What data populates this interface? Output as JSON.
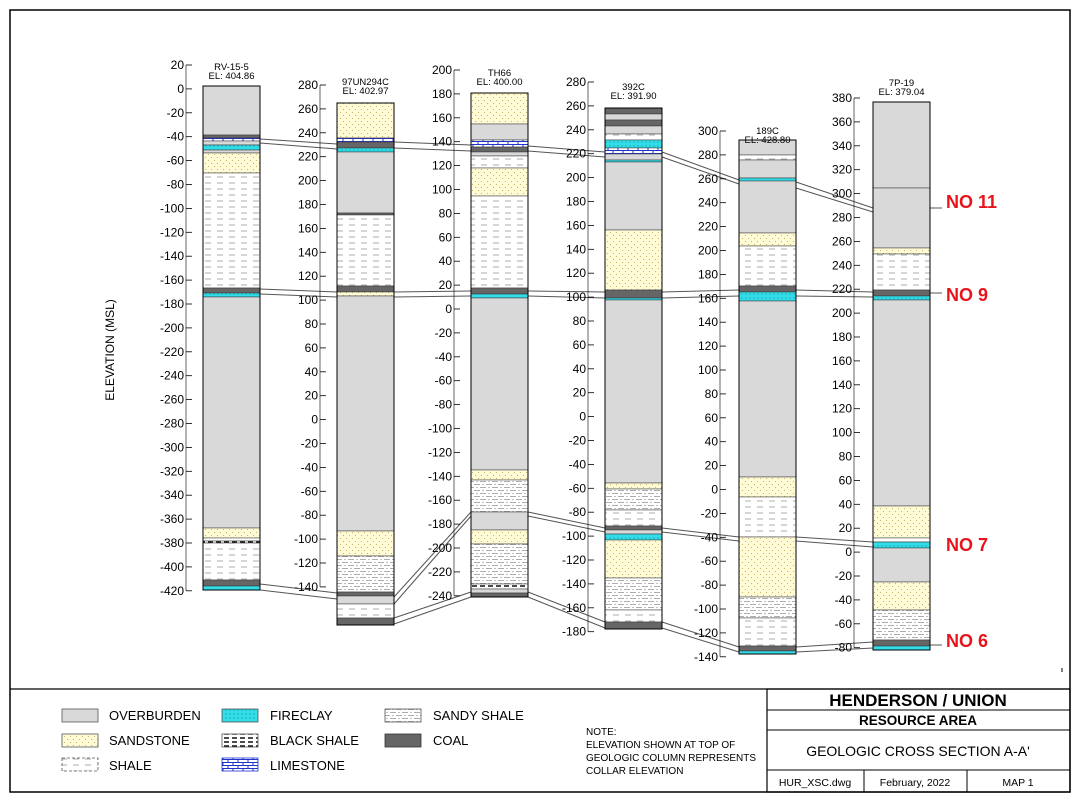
{
  "axis_label": "ELEVATION (MSL)",
  "columns": [
    {
      "id": "RV-15-5",
      "name": "RV-15-5",
      "el_label": "EL: 404.86",
      "ticks": [
        "20",
        "0",
        "-20",
        "-40",
        "-60",
        "-80",
        "-100",
        "-120",
        "-140",
        "-160",
        "-180",
        "-200",
        "-220",
        "-240",
        "-260",
        "-280",
        "-300",
        "-320",
        "-340",
        "-360",
        "-380",
        "-400",
        "-420"
      ]
    },
    {
      "id": "97UN294C",
      "name": "97UN294C",
      "el_label": "EL: 402.97",
      "ticks": [
        "280",
        "260",
        "240",
        "220",
        "200",
        "180",
        "160",
        "140",
        "120",
        "100",
        "80",
        "60",
        "40",
        "20",
        "0",
        "-20",
        "-40",
        "-60",
        "-80",
        "-100",
        "-120",
        "-140"
      ]
    },
    {
      "id": "TH66",
      "name": "TH66",
      "el_label": "EL: 400.00",
      "ticks": [
        "200",
        "180",
        "160",
        "140",
        "120",
        "100",
        "80",
        "60",
        "40",
        "20",
        "0",
        "-20",
        "-40",
        "-60",
        "-80",
        "-100",
        "-120",
        "-140",
        "-160",
        "-180",
        "-200",
        "-220",
        "-240"
      ]
    },
    {
      "id": "392C",
      "name": "392C",
      "el_label": "EL: 391.90",
      "ticks": [
        "280",
        "260",
        "240",
        "220",
        "200",
        "180",
        "160",
        "140",
        "120",
        "100",
        "80",
        "60",
        "40",
        "20",
        "0",
        "-20",
        "-40",
        "-60",
        "-80",
        "-100",
        "-120",
        "-140",
        "-160",
        "-180"
      ]
    },
    {
      "id": "189C",
      "name": "189C",
      "el_label": "EL: 428.80",
      "ticks": [
        "300",
        "280",
        "260",
        "240",
        "220",
        "200",
        "180",
        "160",
        "140",
        "120",
        "100",
        "80",
        "60",
        "40",
        "20",
        "0",
        "-20",
        "-40",
        "-60",
        "-80",
        "-100",
        "-120",
        "-140"
      ]
    },
    {
      "id": "7P-19",
      "name": "7P-19",
      "el_label": "EL: 379.04",
      "ticks": [
        "380",
        "360",
        "340",
        "320",
        "300",
        "280",
        "260",
        "240",
        "220",
        "200",
        "180",
        "160",
        "140",
        "120",
        "100",
        "80",
        "60",
        "40",
        "20",
        "0",
        "-20",
        "-40",
        "-60",
        "-80"
      ]
    }
  ],
  "seams": [
    "NO 11",
    "NO 9",
    "NO 7",
    "NO 6"
  ],
  "legend": [
    "OVERBURDEN",
    "SANDSTONE",
    "SHALE",
    "FIRECLAY",
    "BLACK SHALE",
    "LIMESTONE",
    "SANDY SHALE",
    "COAL"
  ],
  "note": {
    "lines": [
      "NOTE:",
      "ELEVATION SHOWN AT TOP OF",
      "GEOLOGIC COLUMN REPRESENTS",
      "COLLAR ELEVATION"
    ]
  },
  "title_block": {
    "title": "HENDERSON / UNION",
    "subtitle": "RESOURCE AREA",
    "section": "GEOLOGIC CROSS SECTION A-A'",
    "file": "HUR_XSC.dwg",
    "date": "February, 2022",
    "map": "MAP 1"
  },
  "colors": {
    "overburden": "#d9d9d9",
    "sandstone": "#fffbd6",
    "fireclay": "#33dde8",
    "limestone": "#2233cc",
    "coal": "#666666",
    "seam_label": "#e8141b"
  }
}
